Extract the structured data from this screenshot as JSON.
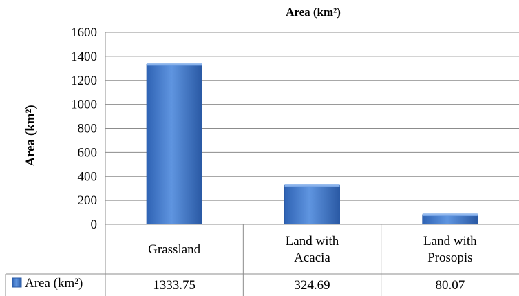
{
  "chart_data": {
    "type": "bar",
    "title": "Area (km²)",
    "ylabel": "Area (km²)",
    "xlabel": "",
    "ylim": [
      0,
      1600
    ],
    "yticks": [
      0,
      200,
      400,
      600,
      800,
      1000,
      1200,
      1400,
      1600
    ],
    "categories": [
      [
        "Grassland"
      ],
      [
        "Land with",
        "Acacia"
      ],
      [
        "Land with",
        "Prosopis"
      ]
    ],
    "series": [
      {
        "name": "Area (km²)",
        "values": [
          1333.75,
          324.69,
          80.07
        ],
        "value_labels": [
          "1333.75",
          "324.69",
          "80.07"
        ]
      }
    ],
    "grid": true,
    "legend": "data-table",
    "colors": {
      "bar": "#4a7fce",
      "bar_dark": "#2a5aa6",
      "bar_light": "#8fb6ee",
      "grid": "#8c8c8c"
    }
  }
}
